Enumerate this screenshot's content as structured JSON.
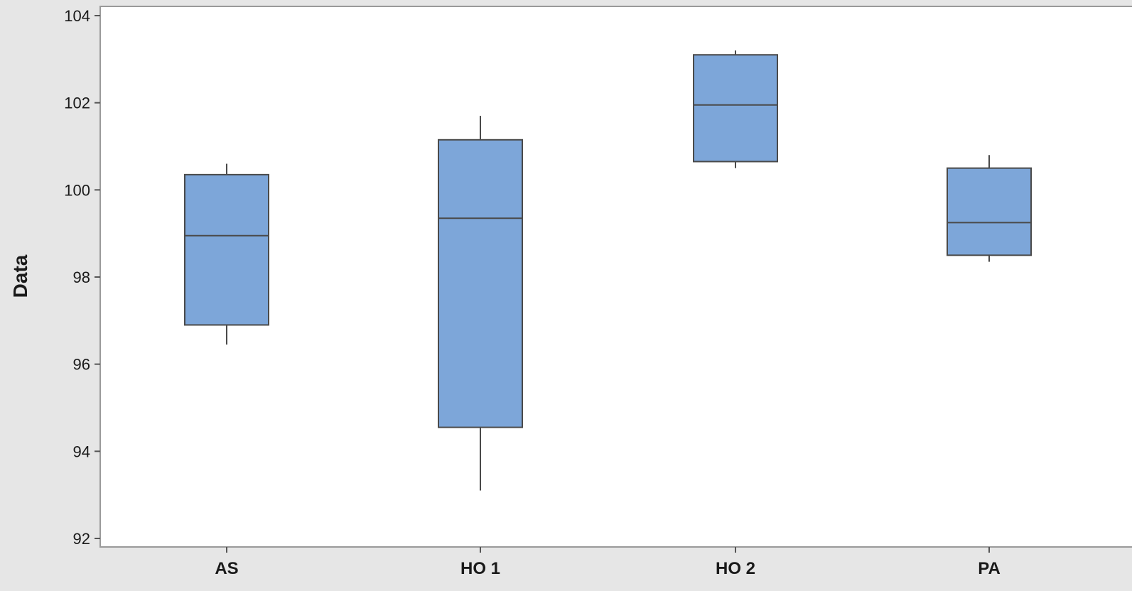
{
  "chart_data": {
    "type": "box",
    "ylabel": "Data",
    "ylim": [
      92,
      104
    ],
    "yticks": [
      92,
      94,
      96,
      98,
      100,
      102,
      104
    ],
    "categories": [
      "AS",
      "HO 1",
      "HO 2",
      "PA"
    ],
    "boxes": [
      {
        "category": "AS",
        "whisker_low": 96.45,
        "q1": 96.9,
        "median": 98.95,
        "q3": 100.35,
        "whisker_high": 100.6
      },
      {
        "category": "HO 1",
        "whisker_low": 93.1,
        "q1": 94.55,
        "median": 99.35,
        "q3": 101.15,
        "whisker_high": 101.7
      },
      {
        "category": "HO 2",
        "whisker_low": 100.5,
        "q1": 100.65,
        "median": 101.95,
        "q3": 103.1,
        "whisker_high": 103.2
      },
      {
        "category": "PA",
        "whisker_low": 98.35,
        "q1": 98.5,
        "median": 99.25,
        "q3": 100.5,
        "whisker_high": 100.8
      }
    ],
    "colors": {
      "box_fill": "#7da6d9",
      "box_stroke": "#4a4a4a",
      "plot_background": "#ffffff",
      "panel_background": "#e6e6e6"
    },
    "grid": false,
    "legend": "none"
  }
}
